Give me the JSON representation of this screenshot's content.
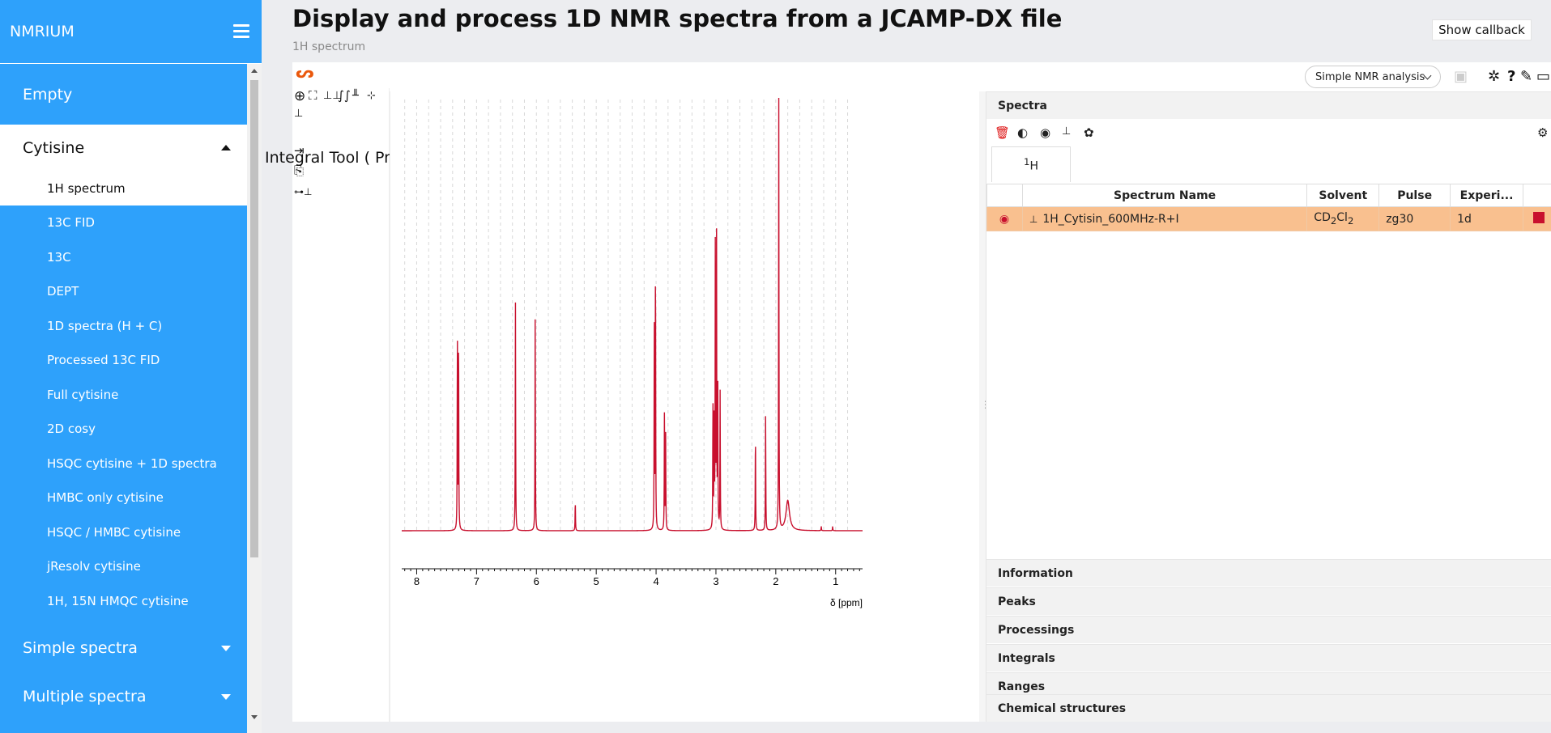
{
  "app": {
    "title": "NMRIUM"
  },
  "header": {
    "page_title": "Display and process 1D NMR spectra from a JCAMP-DX file",
    "subtitle": "1H spectrum",
    "show_callback_label": "Show callback"
  },
  "sidebar": {
    "groups": [
      {
        "label": "Empty",
        "expanded": false
      },
      {
        "label": "Cytisine",
        "expanded": true
      },
      {
        "label": "Simple spectra",
        "expanded": false
      },
      {
        "label": "Multiple spectra",
        "expanded": false
      }
    ],
    "items": [
      {
        "label": "1H spectrum",
        "active": true
      },
      {
        "label": "13C FID"
      },
      {
        "label": "13C"
      },
      {
        "label": "DEPT"
      },
      {
        "label": "1D spectra (H + C)"
      },
      {
        "label": "Processed 13C FID"
      },
      {
        "label": "Full cytisine"
      },
      {
        "label": "2D cosy"
      },
      {
        "label": "HSQC cytisine + 1D spectra"
      },
      {
        "label": "HMBC only cytisine"
      },
      {
        "label": "HSQC / HMBC cytisine"
      },
      {
        "label": "jResolv cytisine"
      },
      {
        "label": "1H, 15N HMQC cytisine"
      }
    ]
  },
  "nmrium": {
    "logo": "ᔕ",
    "workspace": "Simple NMR analysis",
    "tooltip": "Integral Tool ( Press i )",
    "icons": [
      "zoom-icon",
      "rectangle-select-icon",
      "peak-picking-icon",
      "integral-icon",
      "range-icon",
      "baseline-icon",
      "exclusion-zone-icon",
      "import-icon",
      "export-icon",
      "apodization-icon"
    ],
    "top_icons": [
      "save-icon",
      "bug-icon",
      "help-icon",
      "wrench-icon",
      "window-icon"
    ]
  },
  "spectra_panel": {
    "title": "Spectra",
    "nucleus_tab": "1H",
    "columns": [
      "",
      "Spectrum Name",
      "Solvent",
      "Pulse",
      "Experi..."
    ],
    "rows": [
      {
        "name": "1H_Cytisin_600MHz-R+I",
        "solvent": "CD2Cl2",
        "pulse": "zg30",
        "experiment": "1d",
        "color": "#c8102e"
      }
    ]
  },
  "accordion": [
    "Information",
    "Peaks",
    "Processings",
    "Integrals",
    "Ranges",
    "Chemical structures"
  ],
  "colors": {
    "sidebar": "#2ea1fb",
    "spectrum": "#c8102e",
    "row_highlight": "#f9c08f",
    "logo": "#ea580c"
  },
  "chart_data": {
    "type": "line",
    "xlabel": "δ [ppm]",
    "xlim": [
      8.25,
      0.55
    ],
    "reversed_x": true,
    "xticks": [
      8,
      7,
      6,
      5,
      4,
      3,
      2,
      1
    ],
    "series": [
      {
        "peaks": [
          {
            "x": 7.32,
            "h": 0.46
          },
          {
            "x": 7.3,
            "h": 0.47
          },
          {
            "x": 6.35,
            "h": 0.54
          },
          {
            "x": 6.02,
            "h": 0.5
          },
          {
            "x": 5.35,
            "h": 0.07
          },
          {
            "x": 4.03,
            "h": 0.5
          },
          {
            "x": 4.01,
            "h": 0.65
          },
          {
            "x": 3.86,
            "h": 0.29
          },
          {
            "x": 3.84,
            "h": 0.22
          },
          {
            "x": 3.05,
            "h": 0.3
          },
          {
            "x": 3.03,
            "h": 0.29
          },
          {
            "x": 3.01,
            "h": 0.66
          },
          {
            "x": 2.99,
            "h": 0.68
          },
          {
            "x": 2.97,
            "h": 0.38
          },
          {
            "x": 2.93,
            "h": 0.32
          },
          {
            "x": 2.34,
            "h": 0.23
          },
          {
            "x": 2.17,
            "h": 0.27
          },
          {
            "x": 1.95,
            "h": 1.0
          },
          {
            "x": 1.8,
            "h": 0.07
          },
          {
            "x": 1.24,
            "h": 0.01
          },
          {
            "x": 1.05,
            "h": 0.01
          }
        ]
      }
    ]
  }
}
